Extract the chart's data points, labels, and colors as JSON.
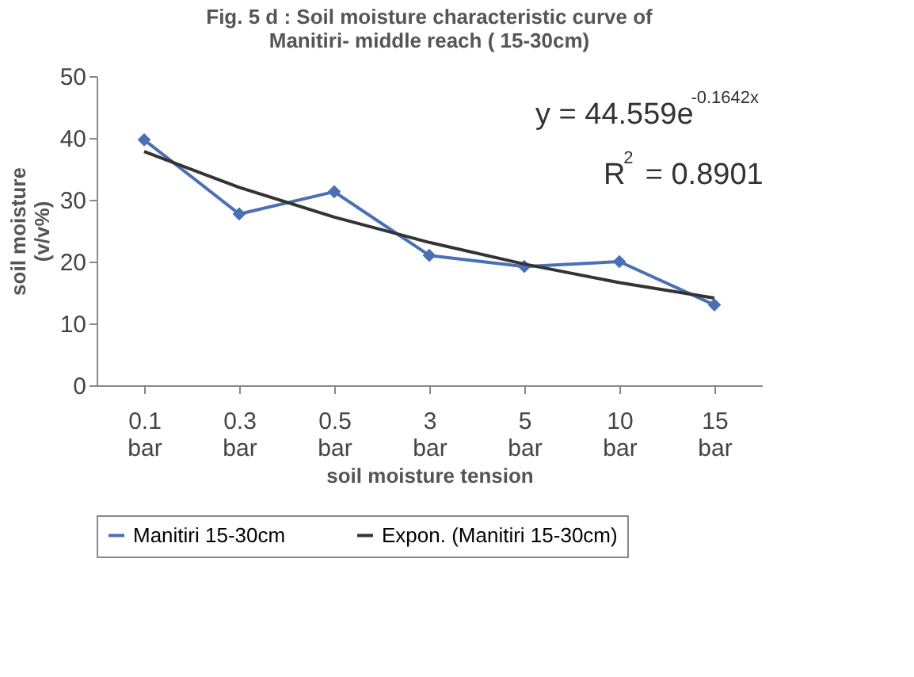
{
  "chart_data": {
    "type": "line",
    "title": "Fig. 5 d : Soil moisture characteristic curve of Manitiri- middle reach (  15-30cm)",
    "xlabel": "soil moisture tension",
    "ylabel": "soil moisture (v/v%)",
    "categories": [
      "0.1 bar",
      "0.3 bar",
      "0.5 bar",
      "3 bar",
      "5 bar",
      "10 bar",
      "15 bar"
    ],
    "series": [
      {
        "name": "Manitiri 15-30cm",
        "color": "#4a6fb5",
        "marker": "diamond",
        "values": [
          39.7,
          27.7,
          31.3,
          21,
          19.2,
          20,
          13
        ]
      },
      {
        "name": "Expon. (Manitiri 15-30cm)",
        "color": "#333333",
        "marker": "none",
        "values": [
          37.8,
          32.0,
          27.2,
          23.1,
          19.6,
          16.6,
          14.1
        ]
      }
    ],
    "ylim": [
      0,
      50
    ],
    "yticks": [
      0,
      10,
      20,
      30,
      40,
      50
    ],
    "grid": false,
    "legend": "bottom",
    "annotations": [
      "y = 44.559e$^{-0.1642x}$",
      "R$^{2}$ = 0.8901"
    ]
  }
}
